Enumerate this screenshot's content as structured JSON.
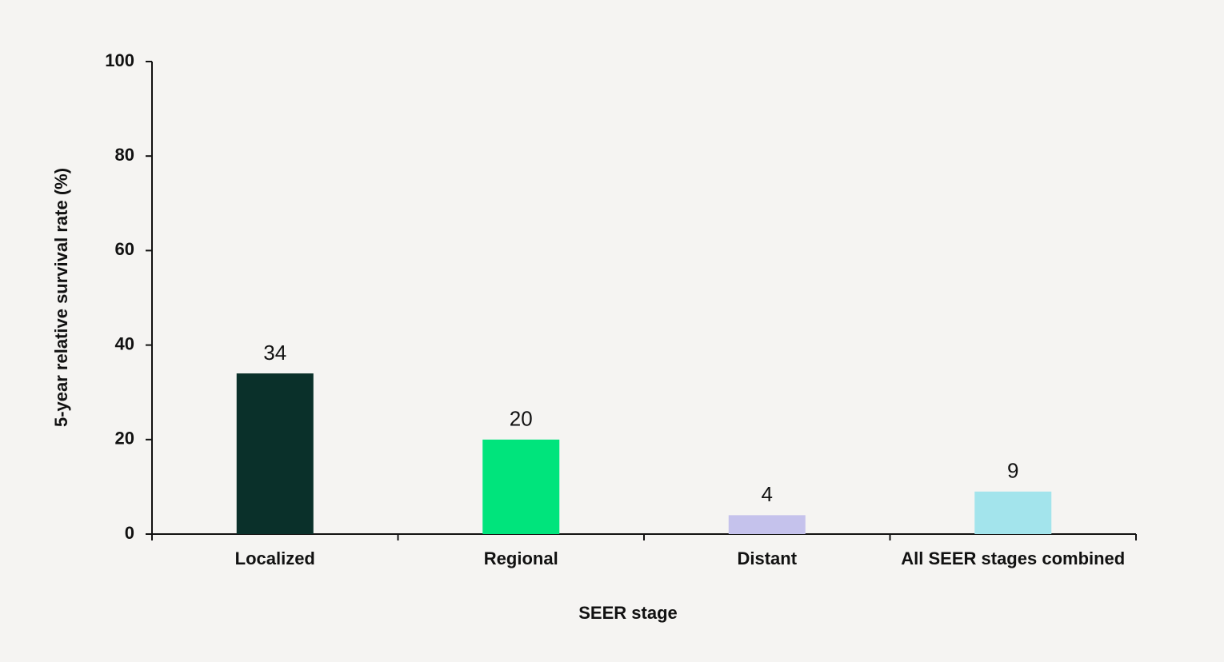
{
  "chart_data": {
    "type": "bar",
    "x_label": "SEER stage",
    "y_label": "5-year relative survival rate (%)",
    "categories": [
      "Localized",
      "Regional",
      "Distant",
      "All SEER stages combined"
    ],
    "values": [
      34,
      20,
      4,
      9
    ],
    "colors": [
      "#0a302a",
      "#00e47c",
      "#c5c2ec",
      "#a3e4ec"
    ],
    "ylim": [
      0,
      100
    ],
    "yticks": [
      0,
      20,
      40,
      60,
      80,
      100
    ],
    "grid": false
  }
}
